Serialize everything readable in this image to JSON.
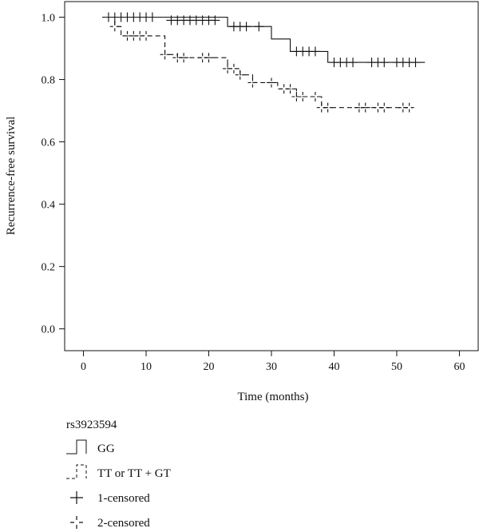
{
  "chart_data": {
    "type": "line",
    "subtype": "kaplan-meier step",
    "xlabel": "Time (months)",
    "ylabel": "Recurrence-free survival",
    "xlim": [
      -3,
      63
    ],
    "ylim": [
      -0.07,
      1.05
    ],
    "xticks": [
      0,
      10,
      20,
      30,
      40,
      50,
      60
    ],
    "yticks": [
      0.0,
      0.2,
      0.4,
      0.6,
      0.8,
      1.0
    ],
    "xtick_labels": [
      "0",
      "10",
      "20",
      "30",
      "40",
      "50",
      "60"
    ],
    "ytick_labels": [
      "0.0",
      "0.2",
      "0.4",
      "0.6",
      "0.8",
      "1.0"
    ],
    "grid": false,
    "series": [
      {
        "name": "GG",
        "style": "solid",
        "steps": [
          [
            3,
            1.0
          ],
          [
            23,
            0.97
          ],
          [
            30,
            0.93
          ],
          [
            33,
            0.89
          ],
          [
            39,
            0.855
          ],
          [
            54.5,
            0.855
          ]
        ],
        "censored": [
          [
            4,
            1.0
          ],
          [
            5,
            1.0
          ],
          [
            6,
            1.0
          ],
          [
            7,
            1.0
          ],
          [
            8,
            1.0
          ],
          [
            9,
            1.0
          ],
          [
            10,
            1.0
          ],
          [
            11,
            1.0
          ],
          [
            14,
            0.99
          ],
          [
            15,
            0.99
          ],
          [
            16,
            0.99
          ],
          [
            17,
            0.99
          ],
          [
            18,
            0.99
          ],
          [
            19,
            0.99
          ],
          [
            20,
            0.99
          ],
          [
            21,
            0.99
          ],
          [
            24,
            0.97
          ],
          [
            25,
            0.97
          ],
          [
            26,
            0.97
          ],
          [
            28,
            0.97
          ],
          [
            34,
            0.89
          ],
          [
            35,
            0.89
          ],
          [
            36,
            0.89
          ],
          [
            37,
            0.89
          ],
          [
            40,
            0.855
          ],
          [
            41,
            0.855
          ],
          [
            42,
            0.855
          ],
          [
            43,
            0.855
          ],
          [
            46,
            0.855
          ],
          [
            47,
            0.855
          ],
          [
            48,
            0.855
          ],
          [
            50,
            0.855
          ],
          [
            51,
            0.855
          ],
          [
            52,
            0.855
          ],
          [
            53,
            0.855
          ]
        ]
      },
      {
        "name": "TT or TT + GT",
        "style": "dashed",
        "steps": [
          [
            3,
            1.0
          ],
          [
            5,
            0.97
          ],
          [
            6,
            0.94
          ],
          [
            13,
            0.88
          ],
          [
            15,
            0.87
          ],
          [
            23,
            0.835
          ],
          [
            25,
            0.815
          ],
          [
            27,
            0.79
          ],
          [
            31,
            0.77
          ],
          [
            34,
            0.745
          ],
          [
            38,
            0.71
          ],
          [
            52.5,
            0.71
          ]
        ],
        "censored": [
          [
            5,
            0.97
          ],
          [
            7,
            0.94
          ],
          [
            8,
            0.94
          ],
          [
            9,
            0.94
          ],
          [
            10,
            0.94
          ],
          [
            13,
            0.88
          ],
          [
            15,
            0.87
          ],
          [
            16,
            0.87
          ],
          [
            19,
            0.87
          ],
          [
            20,
            0.87
          ],
          [
            23,
            0.835
          ],
          [
            24,
            0.835
          ],
          [
            25,
            0.815
          ],
          [
            27,
            0.79
          ],
          [
            30,
            0.79
          ],
          [
            32,
            0.77
          ],
          [
            33,
            0.77
          ],
          [
            34,
            0.745
          ],
          [
            35,
            0.745
          ],
          [
            37,
            0.745
          ],
          [
            38,
            0.71
          ],
          [
            39,
            0.71
          ],
          [
            44,
            0.71
          ],
          [
            45,
            0.71
          ],
          [
            47,
            0.71
          ],
          [
            48,
            0.71
          ],
          [
            51,
            0.71
          ],
          [
            52,
            0.71
          ]
        ]
      }
    ]
  },
  "legend": {
    "title": "rs3923594",
    "items": [
      {
        "label": "GG",
        "symbol": "step-solid"
      },
      {
        "label": "TT or TT + GT",
        "symbol": "step-dashed"
      },
      {
        "label": "1-censored",
        "symbol": "cross-solid"
      },
      {
        "label": "2-censored",
        "symbol": "cross-dashed"
      }
    ]
  }
}
